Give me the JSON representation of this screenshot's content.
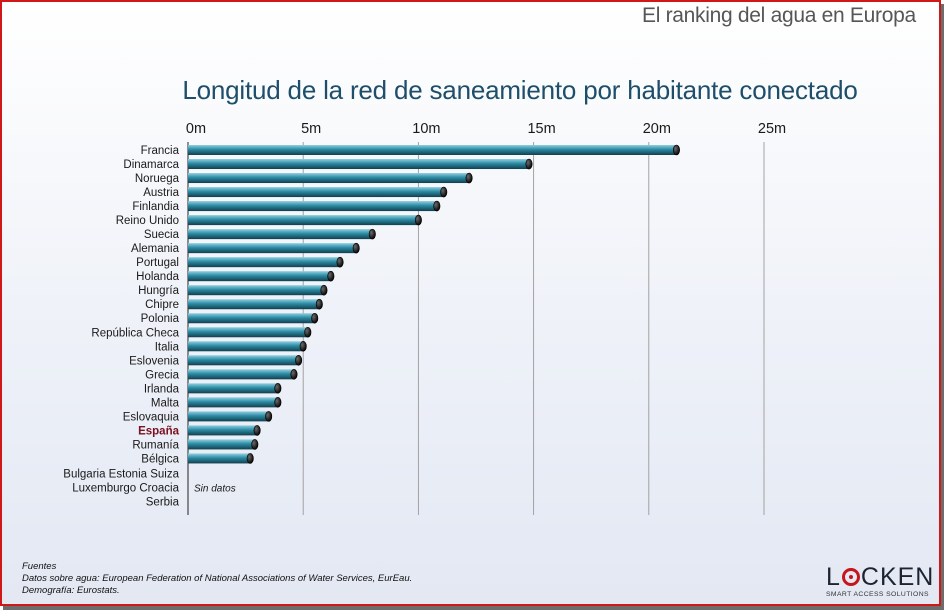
{
  "banner": "El ranking del agua en Europa",
  "chart_data": {
    "type": "bar",
    "orientation": "horizontal",
    "title": "Longitud de la red de saneamiento por habitante conectado",
    "xlim": [
      0,
      25
    ],
    "xticks": [
      "0m",
      "5m",
      "10m",
      "15m",
      "20m",
      "25m"
    ],
    "xtick_values": [
      0,
      5,
      10,
      15,
      20,
      25
    ],
    "grid": "vertical",
    "bar_color": "#2b8aa4",
    "highlight_color": "#7a1020",
    "categories": [
      "Francia",
      "Dinamarca",
      "Noruega",
      "Austria",
      "Finlandia",
      "Reino  Unido",
      "Suecia",
      "Alemania",
      "Portugal",
      "Holanda",
      "Hungría",
      "Chipre",
      "Polonia",
      "República  Checa",
      "Italia",
      "Eslovenia",
      "Grecia",
      "Irlanda",
      "Malta",
      "Eslovaquia",
      "España",
      "Rumanía",
      "Bélgica"
    ],
    "values": [
      21.2,
      14.8,
      12.2,
      11.1,
      10.8,
      10.0,
      8.0,
      7.3,
      6.6,
      6.2,
      5.9,
      5.7,
      5.5,
      5.2,
      5.0,
      4.8,
      4.6,
      3.9,
      3.9,
      3.5,
      3.0,
      2.9,
      2.7
    ],
    "highlight": "España",
    "no_data_label_lines": [
      "Bulgaria Estonia Suiza",
      "Luxemburgo Croacia",
      "Serbia"
    ],
    "no_data_text": "Sin datos"
  },
  "sources": {
    "heading": "Fuentes",
    "line1": "Datos sobre agua: European Federation of National Associations of Water Services, EurEau.",
    "line2": "Demografía: Eurostats."
  },
  "logo": {
    "pre": "L",
    "post": "CKEN",
    "tagline": "SMART ACCESS SOLUTIONS",
    "accent": "#c4161c"
  }
}
